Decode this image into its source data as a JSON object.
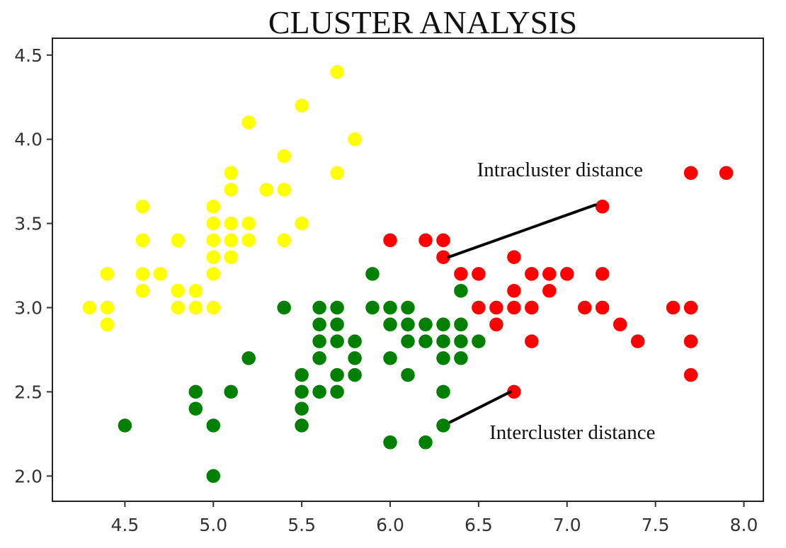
{
  "chart_data": {
    "type": "scatter",
    "title": "CLUSTER  ANALYSIS",
    "xlabel": "",
    "ylabel": "",
    "xlim": [
      4.09,
      8.11
    ],
    "ylim": [
      1.85,
      4.6
    ],
    "xticks": [
      "4.5",
      "5.0",
      "5.5",
      "6.0",
      "6.5",
      "7.0",
      "7.5",
      "8.0"
    ],
    "yticks": [
      "2.0",
      "2.5",
      "3.0",
      "3.5",
      "4.0",
      "4.5"
    ],
    "grid": false,
    "legend": "none",
    "series": [
      {
        "color": "#ffff00",
        "points": [
          [
            4.3,
            3.0
          ],
          [
            4.4,
            3.0
          ],
          [
            4.4,
            2.9
          ],
          [
            4.4,
            3.2
          ],
          [
            4.6,
            3.6
          ],
          [
            4.6,
            3.4
          ],
          [
            4.6,
            3.2
          ],
          [
            4.6,
            3.1
          ],
          [
            4.7,
            3.2
          ],
          [
            4.8,
            3.4
          ],
          [
            4.8,
            3.1
          ],
          [
            4.8,
            3.0
          ],
          [
            4.9,
            3.1
          ],
          [
            4.9,
            3.0
          ],
          [
            5.0,
            3.6
          ],
          [
            5.0,
            3.5
          ],
          [
            5.0,
            3.4
          ],
          [
            5.0,
            3.3
          ],
          [
            5.0,
            3.2
          ],
          [
            5.0,
            3.0
          ],
          [
            5.1,
            3.8
          ],
          [
            5.1,
            3.7
          ],
          [
            5.1,
            3.5
          ],
          [
            5.1,
            3.4
          ],
          [
            5.1,
            3.3
          ],
          [
            5.2,
            4.1
          ],
          [
            5.2,
            3.5
          ],
          [
            5.2,
            3.4
          ],
          [
            5.3,
            3.7
          ],
          [
            5.4,
            3.9
          ],
          [
            5.4,
            3.7
          ],
          [
            5.4,
            3.4
          ],
          [
            5.5,
            4.2
          ],
          [
            5.5,
            3.5
          ],
          [
            5.7,
            4.4
          ],
          [
            5.7,
            3.8
          ],
          [
            5.8,
            4.0
          ]
        ]
      },
      {
        "color": "#008000",
        "points": [
          [
            4.5,
            2.3
          ],
          [
            4.9,
            2.5
          ],
          [
            4.9,
            2.4
          ],
          [
            5.0,
            2.3
          ],
          [
            5.0,
            2.0
          ],
          [
            5.1,
            2.5
          ],
          [
            5.2,
            2.7
          ],
          [
            5.4,
            3.0
          ],
          [
            5.5,
            2.6
          ],
          [
            5.5,
            2.5
          ],
          [
            5.5,
            2.4
          ],
          [
            5.5,
            2.3
          ],
          [
            5.6,
            3.0
          ],
          [
            5.6,
            2.9
          ],
          [
            5.6,
            2.8
          ],
          [
            5.6,
            2.7
          ],
          [
            5.6,
            2.5
          ],
          [
            5.7,
            3.0
          ],
          [
            5.7,
            2.9
          ],
          [
            5.7,
            2.8
          ],
          [
            5.7,
            2.6
          ],
          [
            5.7,
            2.5
          ],
          [
            5.8,
            2.8
          ],
          [
            5.8,
            2.7
          ],
          [
            5.8,
            2.6
          ],
          [
            5.9,
            3.2
          ],
          [
            5.9,
            3.0
          ],
          [
            6.0,
            3.0
          ],
          [
            6.0,
            2.9
          ],
          [
            6.0,
            2.7
          ],
          [
            6.0,
            2.2
          ],
          [
            6.1,
            3.0
          ],
          [
            6.1,
            2.9
          ],
          [
            6.1,
            2.8
          ],
          [
            6.1,
            2.6
          ],
          [
            6.2,
            2.9
          ],
          [
            6.2,
            2.8
          ],
          [
            6.2,
            2.2
          ],
          [
            6.3,
            2.9
          ],
          [
            6.3,
            2.8
          ],
          [
            6.3,
            2.7
          ],
          [
            6.3,
            2.5
          ],
          [
            6.3,
            2.3
          ],
          [
            6.4,
            3.1
          ],
          [
            6.4,
            2.9
          ],
          [
            6.4,
            2.8
          ],
          [
            6.4,
            2.7
          ],
          [
            6.5,
            2.8
          ]
        ]
      },
      {
        "color": "#ff0000",
        "points": [
          [
            6.0,
            3.4
          ],
          [
            6.2,
            3.4
          ],
          [
            6.3,
            3.4
          ],
          [
            6.3,
            3.3
          ],
          [
            6.4,
            3.2
          ],
          [
            6.5,
            3.2
          ],
          [
            6.5,
            3.0
          ],
          [
            6.6,
            3.0
          ],
          [
            6.6,
            2.9
          ],
          [
            6.7,
            3.3
          ],
          [
            6.7,
            3.1
          ],
          [
            6.7,
            3.0
          ],
          [
            6.7,
            2.5
          ],
          [
            6.8,
            3.2
          ],
          [
            6.8,
            3.0
          ],
          [
            6.8,
            2.8
          ],
          [
            6.9,
            3.2
          ],
          [
            6.9,
            3.1
          ],
          [
            7.0,
            3.2
          ],
          [
            7.1,
            3.0
          ],
          [
            7.2,
            3.6
          ],
          [
            7.2,
            3.2
          ],
          [
            7.2,
            3.0
          ],
          [
            7.3,
            2.9
          ],
          [
            7.4,
            2.8
          ],
          [
            7.6,
            3.0
          ],
          [
            7.7,
            3.8
          ],
          [
            7.7,
            3.0
          ],
          [
            7.7,
            2.8
          ],
          [
            7.7,
            2.6
          ],
          [
            7.9,
            3.8
          ]
        ]
      }
    ],
    "annotations": [
      {
        "text": "Intracluster  distance",
        "text_at": [
          6.96,
          3.78
        ],
        "from": [
          6.33,
          3.3
        ],
        "to": [
          7.16,
          3.61
        ]
      },
      {
        "text": "Intercluster distance",
        "text_at": [
          7.03,
          2.22
        ],
        "from": [
          6.34,
          2.32
        ],
        "to": [
          6.68,
          2.5
        ]
      }
    ]
  }
}
